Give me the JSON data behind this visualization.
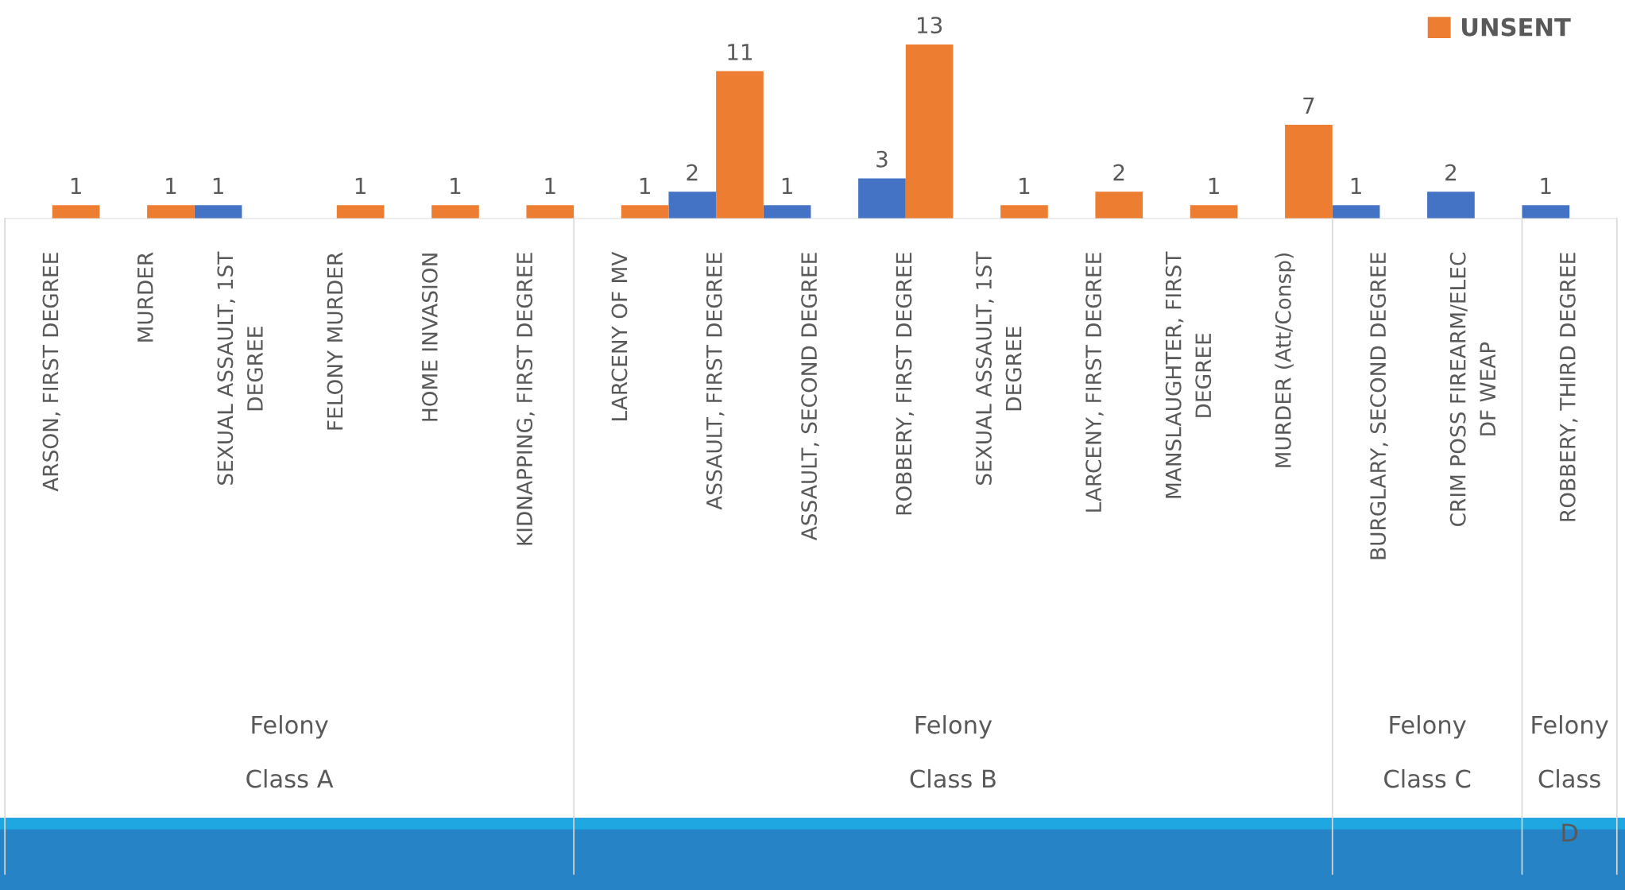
{
  "chart_data": {
    "type": "bar",
    "categories": [
      "ARSON, FIRST DEGREE",
      "MURDER",
      "SEXUAL ASSAULT, 1ST DEGREE",
      "FELONY MURDER",
      "HOME INVASION",
      "KIDNAPPING, FIRST DEGREE",
      "LARCENY OF MV",
      "ASSAULT, FIRST DEGREE",
      "ASSAULT, SECOND DEGREE",
      "ROBBERY, FIRST DEGREE",
      "SEXUAL ASSAULT, 1ST DEGREE",
      "LARCENY, FIRST DEGREE",
      "MANSLAUGHTER, FIRST DEGREE",
      "MURDER (Att/Consp)",
      "BURGLARY, SECOND DEGREE",
      "CRIM POSS FIREARM/ELEC DF WEAP",
      "ROBBERY, THIRD DEGREE"
    ],
    "series": [
      {
        "color": "#4472c4",
        "values": [
          null,
          null,
          1,
          null,
          null,
          null,
          null,
          2,
          1,
          3,
          null,
          null,
          null,
          null,
          1,
          2,
          1
        ]
      },
      {
        "name": "UNSENT",
        "color": "#ed7d31",
        "values": [
          1,
          1,
          null,
          1,
          1,
          1,
          1,
          11,
          null,
          13,
          1,
          2,
          1,
          7,
          null,
          null,
          null
        ]
      }
    ],
    "relative": false,
    "data_labels": true,
    "legend": "top right",
    "grid": false,
    "annotations": [
      "Felony\nClass A",
      "Felony\nClass B",
      "Felony\nClass C",
      "Felony\nClass\nD"
    ]
  }
}
